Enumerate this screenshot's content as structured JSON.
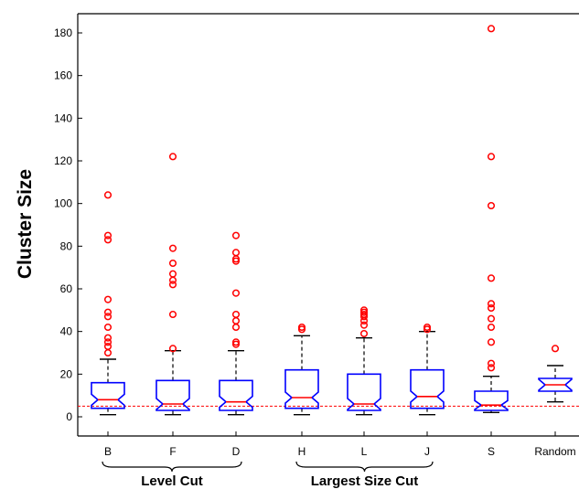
{
  "chart_data": {
    "type": "box",
    "ylabel": "Cluster Size",
    "xlabel": "",
    "ylim": [
      -10,
      190
    ],
    "yticks": [
      0,
      20,
      40,
      60,
      80,
      100,
      120,
      140,
      160,
      180
    ],
    "reference_line": 5,
    "categories": [
      "B",
      "F",
      "D",
      "H",
      "L",
      "J",
      "S",
      "Random"
    ],
    "groups": [
      {
        "label": "Level Cut",
        "categories": [
          "B",
          "F",
          "D"
        ]
      },
      {
        "label": "Largest Size Cut",
        "categories": [
          "H",
          "L",
          "J"
        ]
      }
    ],
    "boxes": [
      {
        "name": "B",
        "whisker_low": 1,
        "q1": 4,
        "median": 8,
        "q3": 16,
        "whisker_high": 27,
        "outliers": [
          104,
          85,
          83,
          55,
          49,
          47,
          42,
          37,
          35,
          33,
          30
        ]
      },
      {
        "name": "F",
        "whisker_low": 1,
        "q1": 3,
        "median": 6,
        "q3": 17,
        "whisker_high": 31,
        "outliers": [
          122,
          79,
          72,
          67,
          64,
          62,
          48,
          32
        ]
      },
      {
        "name": "D",
        "whisker_low": 1,
        "q1": 3,
        "median": 7,
        "q3": 17,
        "whisker_high": 31,
        "outliers": [
          85,
          77,
          74,
          73,
          58,
          48,
          45,
          42,
          35,
          34
        ]
      },
      {
        "name": "H",
        "whisker_low": 1,
        "q1": 4,
        "median": 9,
        "q3": 22,
        "whisker_high": 38,
        "outliers": [
          42,
          41
        ]
      },
      {
        "name": "L",
        "whisker_low": 1,
        "q1": 3,
        "median": 6,
        "q3": 20,
        "whisker_high": 37,
        "outliers": [
          50,
          49,
          48,
          47,
          45,
          43,
          39
        ]
      },
      {
        "name": "J",
        "whisker_low": 1,
        "q1": 4,
        "median": 9.5,
        "q3": 22,
        "whisker_high": 40,
        "outliers": [
          42,
          41
        ]
      },
      {
        "name": "S",
        "whisker_low": 2,
        "q1": 3,
        "median": 5.5,
        "q3": 12,
        "whisker_high": 19,
        "outliers": [
          182,
          122,
          99,
          65,
          53,
          51,
          46,
          42,
          35,
          25,
          23
        ]
      },
      {
        "name": "Random",
        "whisker_low": 7,
        "q1": 12,
        "median": 15,
        "q3": 18,
        "whisker_high": 24,
        "outliers": [
          32
        ]
      }
    ],
    "colors": {
      "box": "#0000ff",
      "median": "#ff0000",
      "outlier": "#ff0000",
      "whisker": "#000000",
      "reference": "#ff0000"
    },
    "grid": false
  }
}
